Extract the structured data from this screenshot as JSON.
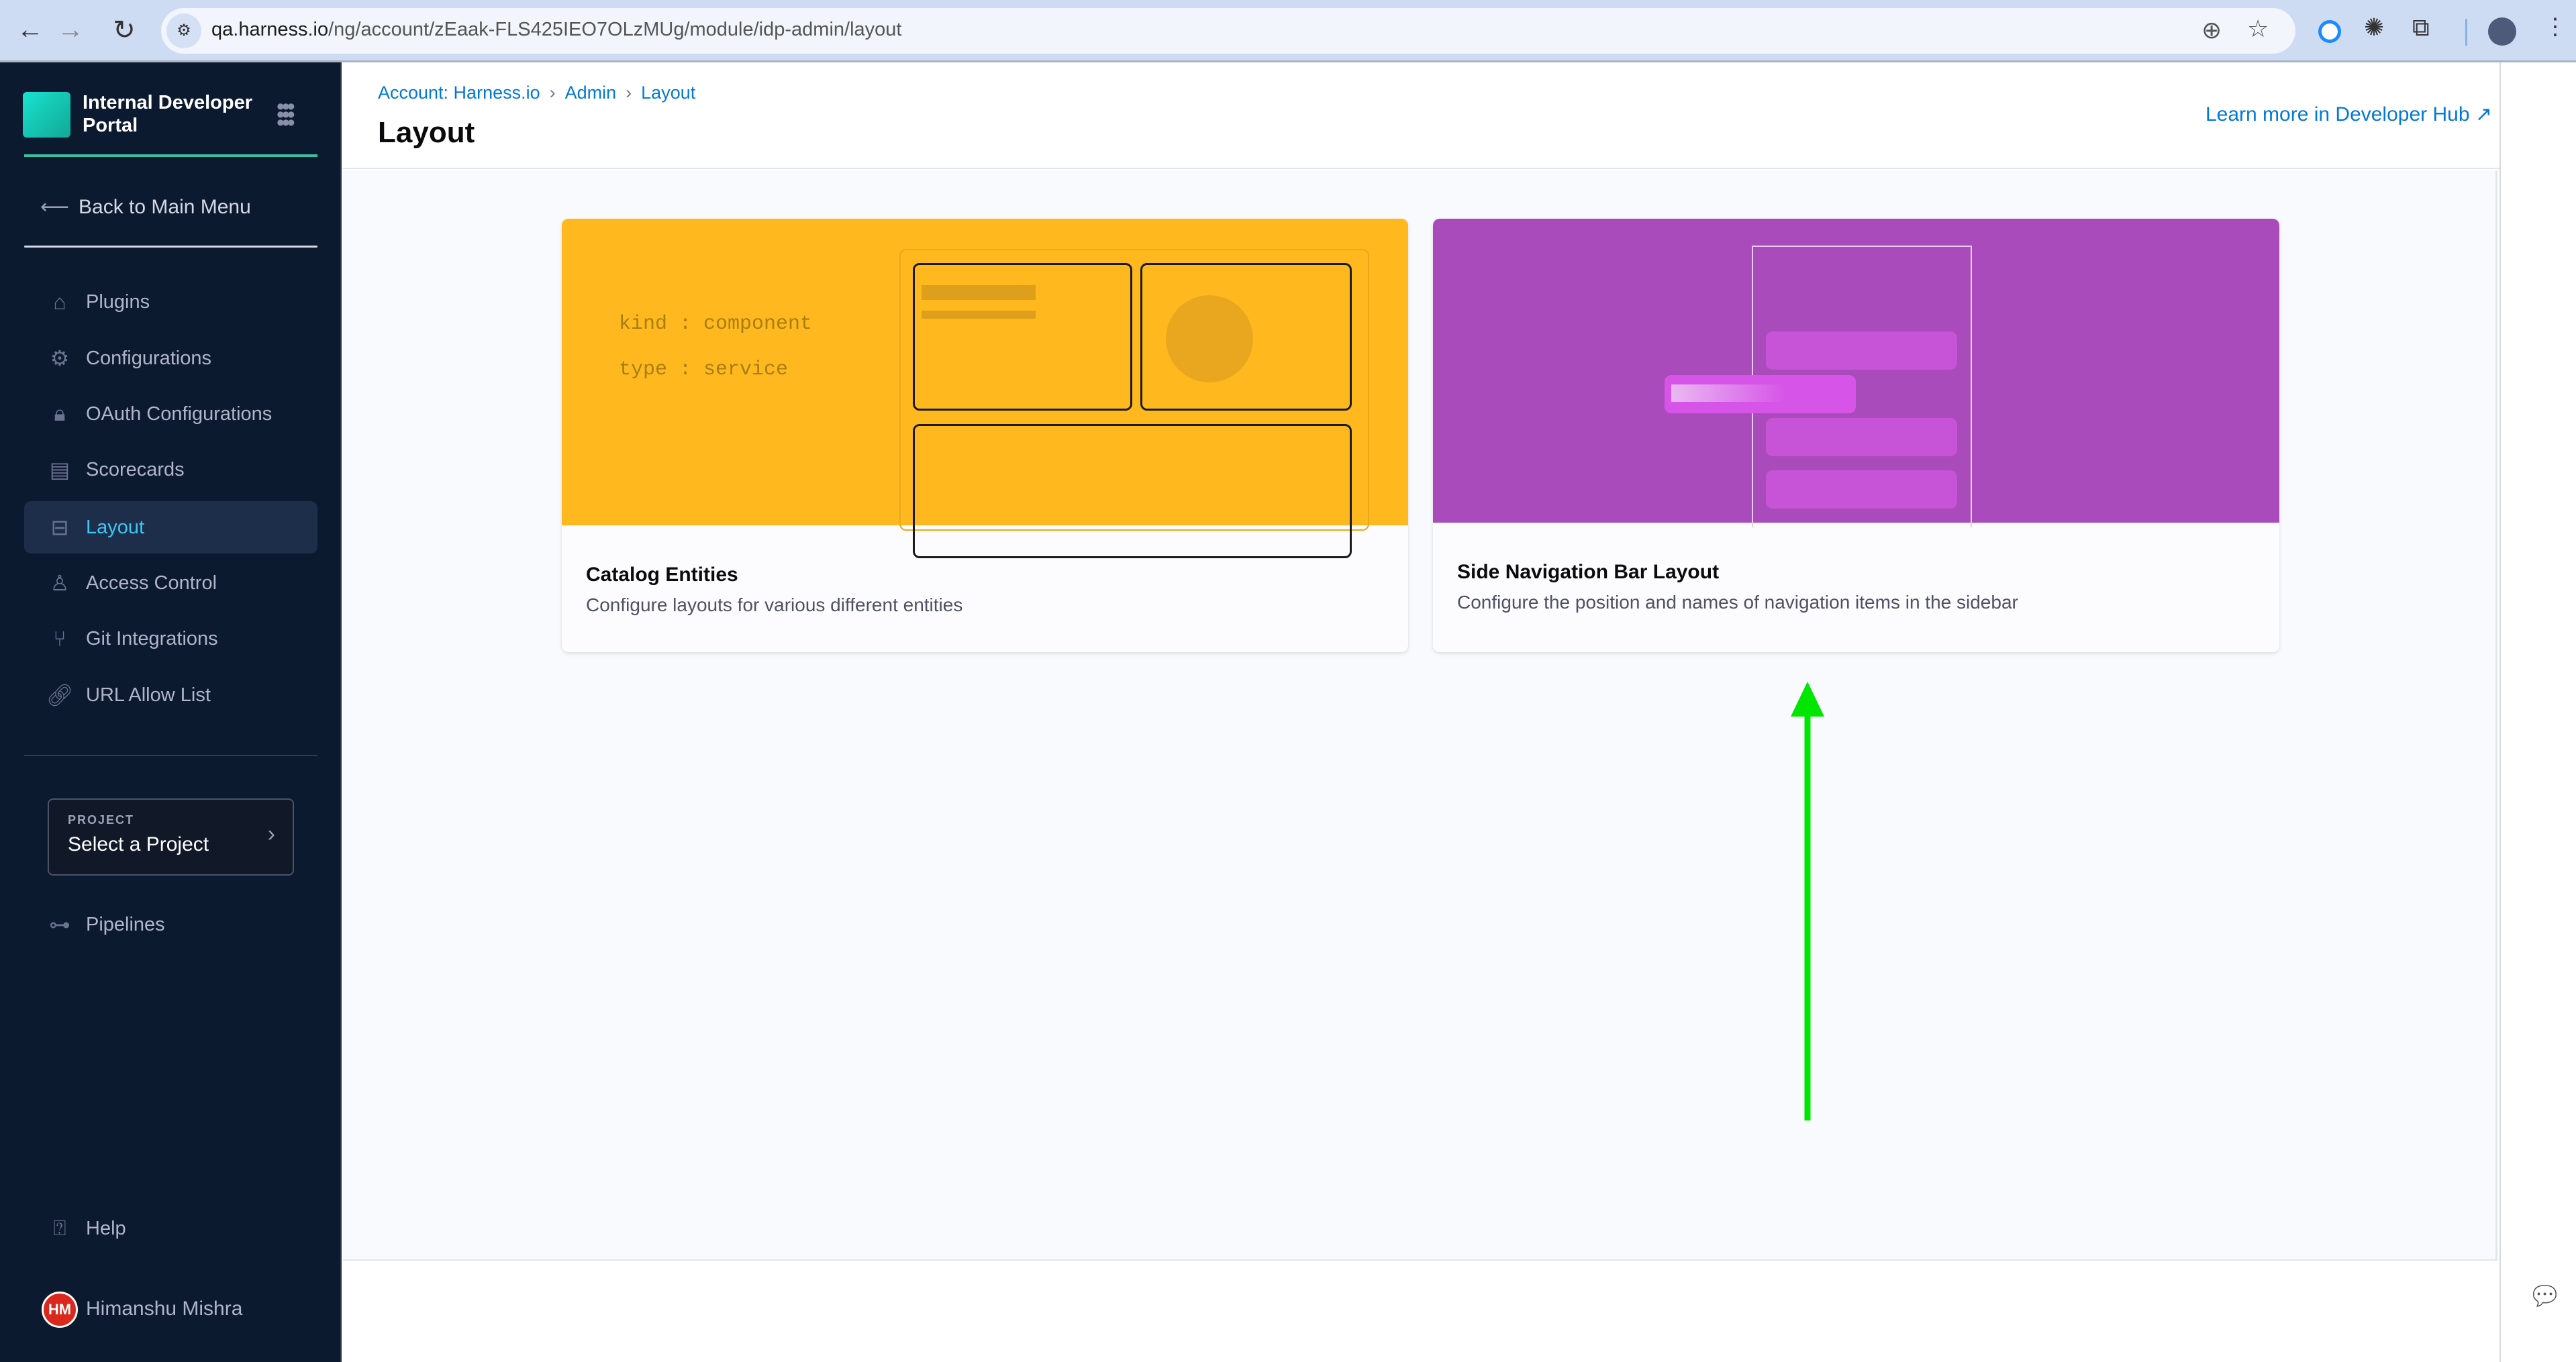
{
  "browser": {
    "url_host": "qa.harness.io",
    "url_path": "/ng/account/zEaak-FLS425IEO7OLzMUg/module/idp-admin/layout"
  },
  "sidebar": {
    "module_title": "Internal Developer Portal",
    "back": "Back to Main Menu",
    "items": [
      {
        "label": "Plugins",
        "icon": "puzzle-icon"
      },
      {
        "label": "Configurations",
        "icon": "gears-icon"
      },
      {
        "label": "OAuth Configurations",
        "icon": "lock-icon"
      },
      {
        "label": "Scorecards",
        "icon": "scorecard-icon"
      },
      {
        "label": "Layout",
        "icon": "layout-icon",
        "active": true
      },
      {
        "label": "Access Control",
        "icon": "user-icon"
      },
      {
        "label": "Git Integrations",
        "icon": "git-icon"
      },
      {
        "label": "URL Allow List",
        "icon": "link-icon"
      }
    ],
    "project": {
      "label": "PROJECT",
      "value": "Select a Project"
    },
    "pipelines": "Pipelines",
    "help": "Help",
    "user": {
      "initials": "HM",
      "name": "Himanshu Mishra"
    }
  },
  "header": {
    "breadcrumb": [
      "Account: Harness.io",
      "Admin",
      "Layout"
    ],
    "title": "Layout",
    "learn_more": "Learn more in Developer Hub"
  },
  "cards": [
    {
      "title": "Catalog Entities",
      "description": "Configure layouts for various different entities",
      "code": [
        "kind : component",
        "type : service"
      ],
      "color": "#ffb91e"
    },
    {
      "title": "Side Navigation Bar Layout",
      "description": "Configure the position and names of navigation items in the sidebar",
      "color": "#a94bbb"
    }
  ],
  "annotation": {
    "arrow_color": "#00e600"
  }
}
